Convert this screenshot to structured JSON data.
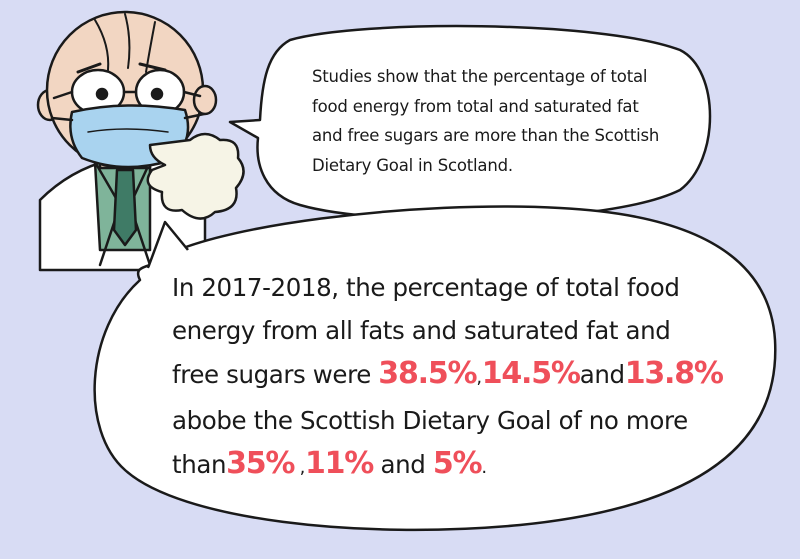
{
  "bubble1": {
    "text": "Studies show that the percentage of total food energy from total and saturated fat and free sugars are more than the Scottish Dietary Goal in Scotland."
  },
  "bubble2": {
    "line1": "In 2017-2018, the percentage of total food",
    "line2": "energy from all fats and saturated fat and",
    "line3_prefix": "free sugars were ",
    "value_fats": "38.5%",
    "sep1": ",",
    "value_saturated": "14.5%",
    "conj1": "and",
    "value_sugars": "13.8%",
    "line4": "abobe the Scottish Dietary Goal of no more",
    "line5_prefix": "than",
    "goal_fats": "35%",
    "sep2": " ,",
    "goal_saturated": "11%",
    "conj2": " and ",
    "goal_sugars": "5%",
    "end": "."
  },
  "colors": {
    "background": "#d8dcf4",
    "highlight": "#ef4f5a",
    "mask": "#a9d3ef",
    "tie": "#3f7b66",
    "shirt": "#7fb49a",
    "skin": "#f2d6c2"
  },
  "icons": [
    "doctor-illustration",
    "cough-cloud-icon"
  ]
}
